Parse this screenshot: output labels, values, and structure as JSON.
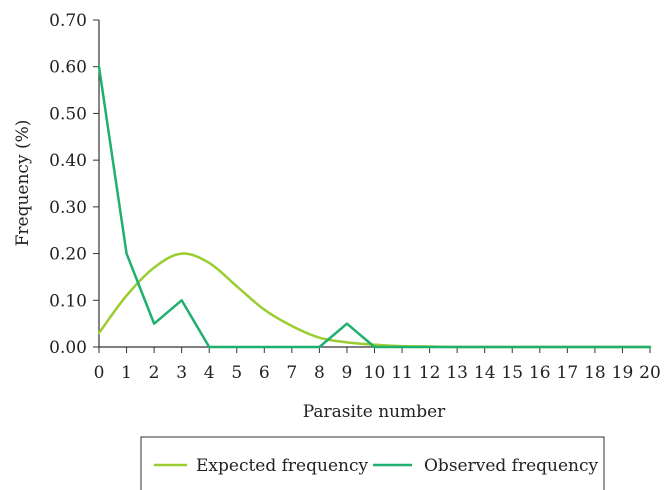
{
  "chart_data": {
    "type": "line",
    "title": "",
    "xlabel": "Parasite number",
    "ylabel": "Frequency (%)",
    "xlim": [
      0,
      20
    ],
    "ylim": [
      0,
      0.7
    ],
    "x": [
      0,
      1,
      2,
      3,
      4,
      5,
      6,
      7,
      8,
      9,
      10,
      11,
      12,
      13,
      14,
      15,
      16,
      17,
      18,
      19,
      20
    ],
    "x_tick_labels": [
      "0",
      "1",
      "2",
      "3",
      "4",
      "5",
      "6",
      "7",
      "8",
      "9",
      "10",
      "11",
      "12",
      "13",
      "14",
      "15",
      "16",
      "17",
      "18",
      "19",
      "20"
    ],
    "y_ticks": [
      0,
      0.1,
      0.2,
      0.3,
      0.4,
      0.5,
      0.6,
      0.7
    ],
    "y_tick_labels": [
      "0.00",
      "0.10",
      "0.20",
      "0.30",
      "0.40",
      "0.50",
      "0.60",
      "0.70"
    ],
    "grid": false,
    "legend_position": "bottom",
    "series": [
      {
        "name": "Expected frequency",
        "color": "#9acd32",
        "smooth": true,
        "values": [
          0.03,
          0.11,
          0.17,
          0.2,
          0.18,
          0.13,
          0.08,
          0.045,
          0.02,
          0.01,
          0.005,
          0.002,
          0.001,
          0,
          0,
          0,
          0,
          0,
          0,
          0,
          0
        ]
      },
      {
        "name": "Observed frequency",
        "color": "#1fb070",
        "smooth": false,
        "values": [
          0.6,
          0.2,
          0.05,
          0.1,
          0,
          0,
          0,
          0,
          0,
          0.05,
          0,
          0,
          0,
          0,
          0,
          0,
          0,
          0,
          0,
          0,
          0
        ]
      }
    ]
  }
}
